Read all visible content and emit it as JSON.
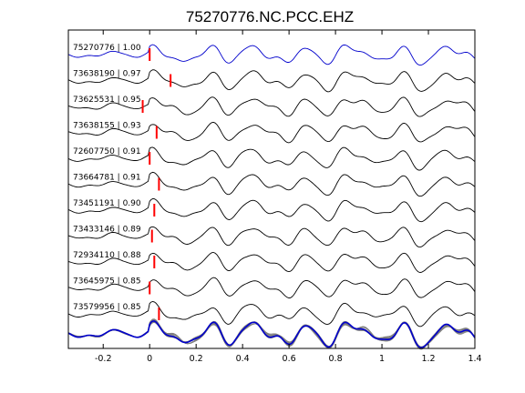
{
  "chart_data": {
    "type": "line",
    "title": "75270776.NC.PCC.EHZ",
    "xlabel": "",
    "ylabel": "",
    "xlim": [
      -0.35,
      1.4
    ],
    "xticks": [
      -0.2,
      0,
      0.2,
      0.4,
      0.6,
      0.8,
      1,
      1.2,
      1.4
    ],
    "xtick_labels": [
      "-0.2",
      "0",
      "0.2",
      "0.4",
      "0.6",
      "0.8",
      "1",
      "1.2",
      "1.4"
    ],
    "grid": false,
    "series": [
      {
        "name": "75270776 | 1.00",
        "color": "#0000cc",
        "pick_time": 0.0,
        "seed": 1
      },
      {
        "name": "73638190 | 0.97",
        "color": "#000000",
        "pick_time": 0.09,
        "seed": 2
      },
      {
        "name": "73625531 | 0.95",
        "color": "#000000",
        "pick_time": -0.03,
        "seed": 3
      },
      {
        "name": "73638155 | 0.93",
        "color": "#000000",
        "pick_time": 0.03,
        "seed": 4
      },
      {
        "name": "72607750 | 0.91",
        "color": "#000000",
        "pick_time": 0.0,
        "seed": 5
      },
      {
        "name": "73664781 | 0.91",
        "color": "#000000",
        "pick_time": 0.04,
        "seed": 6
      },
      {
        "name": "73451191 | 0.90",
        "color": "#000000",
        "pick_time": 0.02,
        "seed": 7
      },
      {
        "name": "73433146 | 0.89",
        "color": "#000000",
        "pick_time": 0.01,
        "seed": 8
      },
      {
        "name": "72934110 | 0.88",
        "color": "#000000",
        "pick_time": 0.02,
        "seed": 9
      },
      {
        "name": "73645975 | 0.85",
        "color": "#000000",
        "pick_time": 0.0,
        "seed": 10
      },
      {
        "name": "73579956 | 0.85",
        "color": "#000000",
        "pick_time": 0.04,
        "seed": 11
      }
    ],
    "stack": {
      "reference_color": "#0000cc",
      "overlay_color": "#7f7f7f"
    },
    "pick_color": "#ff0000"
  }
}
